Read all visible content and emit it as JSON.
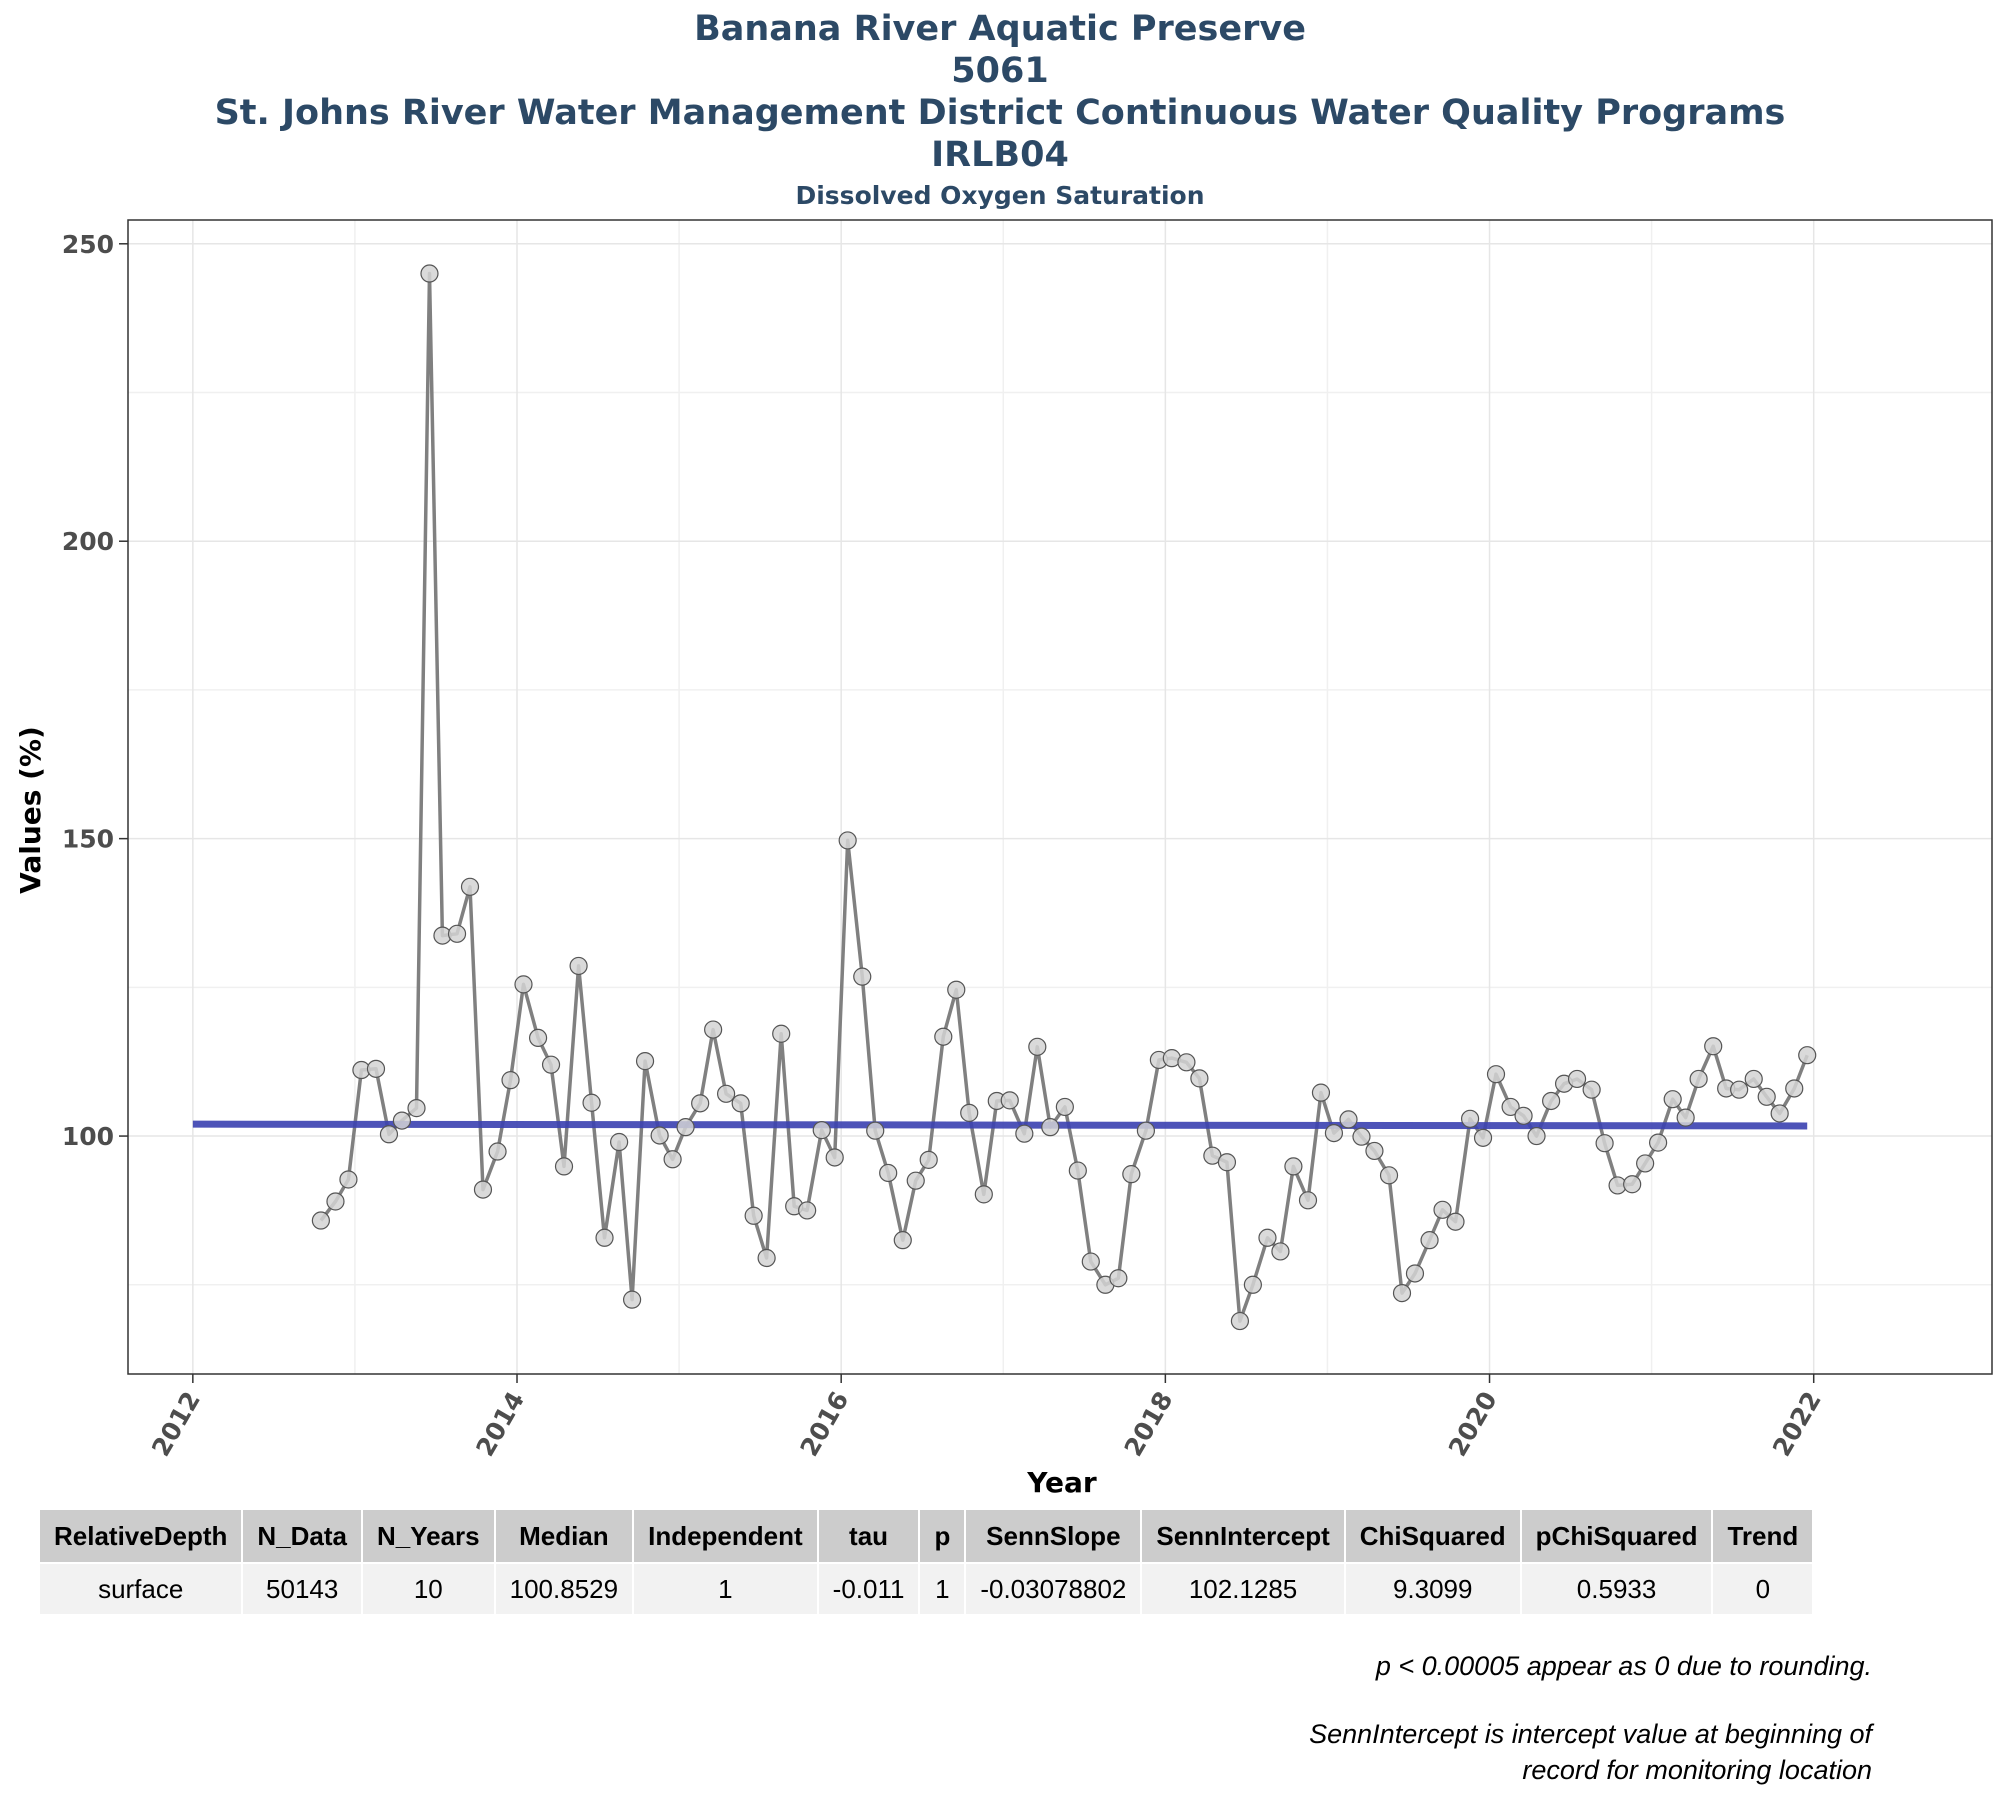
{
  "title_lines": [
    "Banana River Aquatic Preserve",
    "5061",
    "St. Johns River Water Management District Continuous Water Quality Programs",
    "IRLB04"
  ],
  "subtitle": "Dissolved Oxygen Saturation",
  "colors": {
    "title": "#2c4966",
    "series": "#808080",
    "trend": "#3a40b0",
    "marker_fill": "#d3d3d3"
  },
  "chart_data": {
    "type": "line",
    "xlabel": "Year",
    "ylabel": "Values (%)",
    "xlim": [
      2011.6,
      2023.1
    ],
    "ylim": [
      60,
      254
    ],
    "x_ticks": [
      2012,
      2014,
      2016,
      2018,
      2020,
      2022
    ],
    "y_ticks": [
      100,
      150,
      200,
      250
    ],
    "grid": true,
    "legend": "none",
    "series": [
      {
        "x": [
          2012.79,
          2012.88,
          2012.96,
          2013.04,
          2013.13,
          2013.21,
          2013.29,
          2013.38,
          2013.46,
          2013.54,
          2013.63,
          2013.71,
          2013.79,
          2013.88,
          2013.96,
          2014.04,
          2014.13,
          2014.21,
          2014.29,
          2014.38,
          2014.46,
          2014.54,
          2014.63,
          2014.71,
          2014.79,
          2014.88,
          2014.96,
          2015.04,
          2015.13,
          2015.21,
          2015.29,
          2015.38,
          2015.46,
          2015.54,
          2015.63,
          2015.71,
          2015.79,
          2015.88,
          2015.96,
          2016.04,
          2016.13,
          2016.21,
          2016.29,
          2016.38,
          2016.46,
          2016.54,
          2016.63,
          2016.71,
          2016.79,
          2016.88,
          2016.96,
          2017.04,
          2017.13,
          2017.21,
          2017.29,
          2017.38,
          2017.46,
          2017.54,
          2017.63,
          2017.71,
          2017.79,
          2017.88,
          2017.96,
          2018.04,
          2018.13,
          2018.21,
          2018.29,
          2018.38,
          2018.46,
          2018.54,
          2018.63,
          2018.71,
          2018.79,
          2018.88,
          2018.96,
          2019.04,
          2019.13,
          2019.21,
          2019.29,
          2019.38,
          2019.46,
          2019.54,
          2019.63,
          2019.71,
          2019.79,
          2019.88,
          2019.96,
          2020.04,
          2020.13,
          2020.21,
          2020.29,
          2020.38,
          2020.46,
          2020.54,
          2020.63,
          2020.71,
          2020.79,
          2020.88,
          2020.96,
          2021.04,
          2021.13,
          2021.21,
          2021.29,
          2021.38,
          2021.46,
          2021.54,
          2021.63,
          2021.71,
          2021.79,
          2021.88,
          2021.96
        ],
        "values": [
          85.8,
          89.0,
          92.7,
          111.1,
          111.3,
          100.3,
          102.6,
          104.7,
          245.0,
          133.7,
          134.0,
          141.9,
          91.0,
          97.4,
          109.4,
          125.5,
          116.5,
          112.0,
          94.9,
          128.6,
          105.6,
          82.9,
          99.0,
          72.5,
          112.6,
          100.1,
          96.1,
          101.5,
          105.5,
          117.9,
          107.1,
          105.5,
          86.6,
          79.5,
          117.2,
          88.2,
          87.5,
          101.0,
          96.4,
          149.7,
          126.8,
          100.9,
          93.8,
          82.5,
          92.5,
          96.0,
          116.7,
          124.6,
          103.9,
          90.2,
          105.9,
          106.0,
          100.4,
          115.0,
          101.5,
          104.9,
          94.2,
          78.9,
          75.0,
          76.1,
          93.6,
          100.9,
          112.8,
          113.1,
          112.4,
          109.7,
          96.7,
          95.6,
          68.9,
          75.0,
          82.9,
          80.6,
          94.9,
          89.2,
          107.3,
          100.5,
          102.8,
          99.9,
          97.5,
          93.4,
          73.6,
          76.9,
          82.5,
          87.6,
          85.6,
          102.9,
          99.7,
          110.4,
          104.9,
          103.4,
          100.0,
          105.9,
          108.8,
          109.6,
          107.8,
          98.8,
          91.7,
          91.9,
          95.4,
          98.9,
          106.2,
          103.1,
          109.6,
          115.1,
          108.0,
          107.8,
          109.6,
          106.6,
          103.8,
          108.0,
          113.6
        ]
      }
    ],
    "trend_line": {
      "x": [
        2012.0,
        2021.96
      ],
      "y": [
        102.0,
        101.7
      ]
    }
  },
  "table": {
    "headers": [
      "RelativeDepth",
      "N_Data",
      "N_Years",
      "Median",
      "Independent",
      "tau",
      "p",
      "SennSlope",
      "SennIntercept",
      "ChiSquared",
      "pChiSquared",
      "Trend"
    ],
    "row": [
      "surface",
      "50143",
      "10",
      "100.8529",
      "1",
      "-0.011",
      "1",
      "-0.03078802",
      "102.1285",
      "9.3099",
      "0.5933",
      "0"
    ]
  },
  "notes": {
    "note1": "p < 0.00005 appear as 0 due to rounding.",
    "note2_line1": "SennIntercept is intercept value at beginning of",
    "note2_line2": "record for monitoring location"
  }
}
